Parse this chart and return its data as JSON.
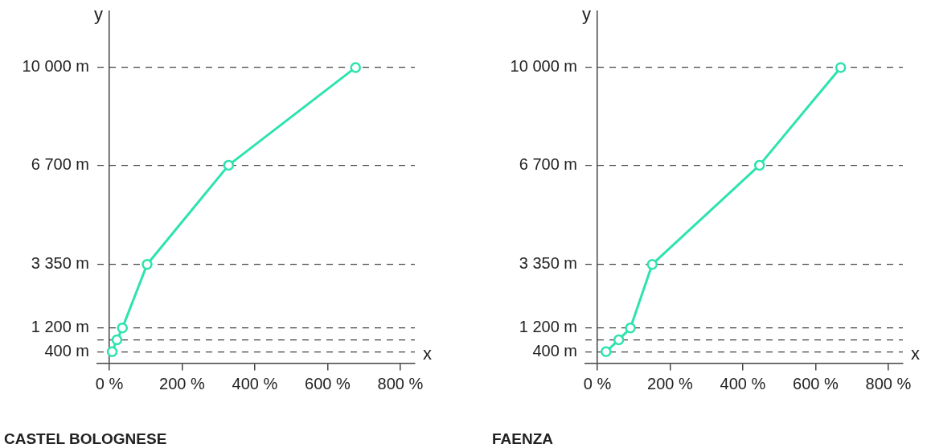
{
  "chart_data": [
    {
      "type": "line",
      "title": "CASTEL BOLOGNESE",
      "xlabel": "x",
      "ylabel": "y",
      "x": [
        8,
        21,
        36,
        104,
        328,
        677
      ],
      "values": [
        400,
        800,
        1200,
        3350,
        6700,
        10000
      ],
      "color": "#2de3ae",
      "marker": "circle",
      "line_style": "solid",
      "grid": "y",
      "xlim": [
        -33,
        840
      ],
      "ylim": [
        0,
        11900
      ],
      "xticks": [
        {
          "value": 0,
          "label": "0 %"
        },
        {
          "value": 200,
          "label": "200 %"
        },
        {
          "value": 400,
          "label": "400 %"
        },
        {
          "value": 600,
          "label": "600 %"
        },
        {
          "value": 800,
          "label": "800 %"
        }
      ],
      "yticks": [
        {
          "value": 400,
          "label": "400 m"
        },
        {
          "value": 800,
          "label": null
        },
        {
          "value": 1200,
          "label": "1 200 m"
        },
        {
          "value": 3350,
          "label": "3 350 m"
        },
        {
          "value": 6700,
          "label": "6 700 m"
        },
        {
          "value": 10000,
          "label": "10 000 m"
        }
      ]
    },
    {
      "type": "line",
      "title": "FAENZA",
      "xlabel": "x",
      "ylabel": "y",
      "x": [
        24,
        59,
        91,
        151,
        446,
        669
      ],
      "values": [
        400,
        800,
        1200,
        3350,
        6700,
        10000
      ],
      "color": "#2de3ae",
      "marker": "circle",
      "line_style": "solid",
      "grid": "y",
      "xlim": [
        -33,
        840
      ],
      "ylim": [
        0,
        11900
      ],
      "xticks": [
        {
          "value": 0,
          "label": "0 %"
        },
        {
          "value": 200,
          "label": "200 %"
        },
        {
          "value": 400,
          "label": "400 %"
        },
        {
          "value": 600,
          "label": "600 %"
        },
        {
          "value": 800,
          "label": "800 %"
        }
      ],
      "yticks": [
        {
          "value": 400,
          "label": "400 m"
        },
        {
          "value": 800,
          "label": null
        },
        {
          "value": 1200,
          "label": "1 200 m"
        },
        {
          "value": 3350,
          "label": "3 350 m"
        },
        {
          "value": 6700,
          "label": "6 700 m"
        },
        {
          "value": 10000,
          "label": "10 000 m"
        }
      ]
    }
  ]
}
